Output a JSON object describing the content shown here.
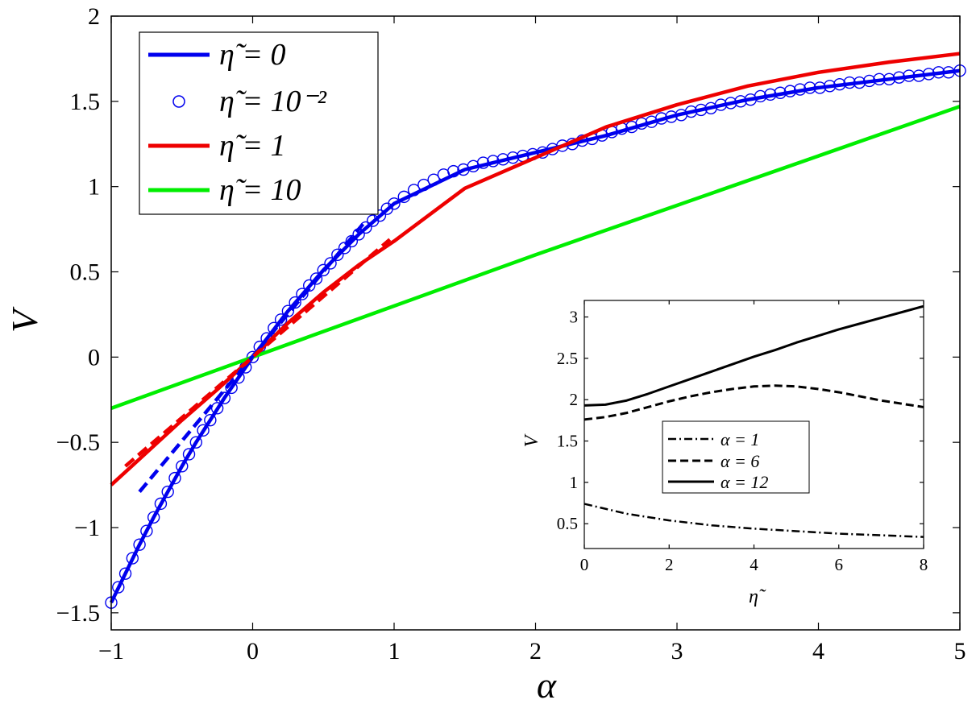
{
  "chart_data": [
    {
      "type": "line",
      "xlabel": "α",
      "ylabel": "V",
      "xlim": [
        -1,
        5
      ],
      "ylim": [
        -1.6,
        2
      ],
      "xticks": [
        {
          "value": -1,
          "label": "−1"
        },
        {
          "value": 0,
          "label": "0"
        },
        {
          "value": 1,
          "label": "1"
        },
        {
          "value": 2,
          "label": "2"
        },
        {
          "value": 3,
          "label": "3"
        },
        {
          "value": 4,
          "label": "4"
        },
        {
          "value": 5,
          "label": "5"
        }
      ],
      "yticks": [
        {
          "value": -1.5,
          "label": "−1.5"
        },
        {
          "value": -1,
          "label": "−1"
        },
        {
          "value": -0.5,
          "label": "−0.5"
        },
        {
          "value": 0,
          "label": "0"
        },
        {
          "value": 0.5,
          "label": "0.5"
        },
        {
          "value": 1,
          "label": "1"
        },
        {
          "value": 1.5,
          "label": "1.5"
        },
        {
          "value": 2,
          "label": "2"
        }
      ],
      "grid": false,
      "legend_position": "top-left",
      "series": [
        {
          "name": "η̃ = 0",
          "color": "#0000ee",
          "style": "solid",
          "x": [
            -1,
            -0.9,
            -0.8,
            -0.7,
            -0.6,
            -0.5,
            -0.4,
            -0.3,
            -0.2,
            -0.1,
            0,
            0.25,
            0.5,
            0.75,
            1,
            1.5,
            2,
            2.5,
            3,
            3.5,
            4,
            4.5,
            5
          ],
          "y": [
            -1.44,
            -1.27,
            -1.1,
            -0.94,
            -0.79,
            -0.64,
            -0.5,
            -0.37,
            -0.24,
            -0.12,
            0,
            0.27,
            0.51,
            0.72,
            0.9,
            1.1,
            1.2,
            1.3,
            1.42,
            1.51,
            1.58,
            1.63,
            1.68
          ]
        },
        {
          "name": "η̃ = 10⁻²",
          "color": "#0000ee",
          "style": "markers",
          "x": [
            -1,
            -0.95,
            -0.9,
            -0.85,
            -0.8,
            -0.75,
            -0.7,
            -0.65,
            -0.6,
            -0.55,
            -0.5,
            -0.45,
            -0.4,
            -0.35,
            -0.3,
            -0.25,
            -0.2,
            -0.15,
            -0.1,
            -0.05,
            0,
            0.05,
            0.1,
            0.15,
            0.2,
            0.25,
            0.3,
            0.35,
            0.4,
            0.45,
            0.5,
            0.55,
            0.6,
            0.65,
            0.7,
            0.75,
            0.8,
            0.85,
            0.9,
            0.95,
            1,
            1.07,
            1.14,
            1.21,
            1.28,
            1.35,
            1.42,
            1.49,
            1.56,
            1.63,
            1.7,
            1.77,
            1.84,
            1.91,
            1.98,
            2.05,
            2.12,
            2.19,
            2.26,
            2.33,
            2.4,
            2.47,
            2.54,
            2.61,
            2.68,
            2.75,
            2.82,
            2.89,
            2.96,
            3.03,
            3.1,
            3.17,
            3.24,
            3.31,
            3.38,
            3.45,
            3.52,
            3.59,
            3.66,
            3.73,
            3.8,
            3.87,
            3.94,
            4.01,
            4.08,
            4.15,
            4.22,
            4.29,
            4.36,
            4.43,
            4.5,
            4.57,
            4.64,
            4.71,
            4.78,
            4.85,
            4.92,
            5
          ],
          "y": [
            -1.44,
            -1.35,
            -1.27,
            -1.18,
            -1.1,
            -1.02,
            -0.94,
            -0.86,
            -0.79,
            -0.71,
            -0.64,
            -0.57,
            -0.5,
            -0.43,
            -0.37,
            -0.3,
            -0.24,
            -0.18,
            -0.12,
            -0.06,
            0,
            0.06,
            0.11,
            0.17,
            0.22,
            0.27,
            0.32,
            0.37,
            0.42,
            0.46,
            0.51,
            0.55,
            0.6,
            0.64,
            0.68,
            0.72,
            0.76,
            0.8,
            0.83,
            0.87,
            0.9,
            0.94,
            0.98,
            1.01,
            1.04,
            1.07,
            1.09,
            1.1,
            1.12,
            1.14,
            1.15,
            1.16,
            1.17,
            1.18,
            1.19,
            1.2,
            1.22,
            1.24,
            1.25,
            1.27,
            1.28,
            1.3,
            1.32,
            1.34,
            1.35,
            1.37,
            1.38,
            1.4,
            1.41,
            1.42,
            1.44,
            1.45,
            1.46,
            1.48,
            1.49,
            1.5,
            1.51,
            1.53,
            1.54,
            1.55,
            1.56,
            1.57,
            1.58,
            1.58,
            1.59,
            1.6,
            1.61,
            1.61,
            1.62,
            1.63,
            1.63,
            1.64,
            1.65,
            1.65,
            1.66,
            1.67,
            1.67,
            1.68
          ]
        },
        {
          "name": "η̃ = 1",
          "color": "#ee0000",
          "style": "solid",
          "x": [
            -1,
            -0.75,
            -0.5,
            -0.25,
            0,
            0.25,
            0.5,
            0.75,
            1,
            1.5,
            2,
            2.5,
            3,
            3.5,
            4,
            4.5,
            5
          ],
          "y": [
            -0.75,
            -0.56,
            -0.37,
            -0.19,
            0,
            0.2,
            0.38,
            0.54,
            0.68,
            0.99,
            1.17,
            1.35,
            1.48,
            1.59,
            1.67,
            1.73,
            1.78
          ]
        },
        {
          "name": "η̃ = 10",
          "color": "#00ee00",
          "style": "solid",
          "x": [
            -1,
            0,
            1,
            2,
            3,
            4,
            5
          ],
          "y": [
            -0.3,
            0,
            0.3,
            0.6,
            0.89,
            1.18,
            1.47
          ]
        },
        {
          "color": "#0000ee",
          "style": "dashed",
          "x": [
            -0.8,
            0.78
          ],
          "y": [
            -0.79,
            0.78
          ]
        },
        {
          "color": "#ee0000",
          "style": "dashed",
          "x": [
            -0.9,
            0.97
          ],
          "y": [
            -0.64,
            0.69
          ]
        }
      ]
    },
    {
      "type": "line",
      "xlabel": "η̃",
      "ylabel": "V",
      "xlim": [
        0,
        8
      ],
      "ylim": [
        0.2,
        3.2
      ],
      "xticks": [
        {
          "value": 0,
          "label": "0"
        },
        {
          "value": 2,
          "label": "2"
        },
        {
          "value": 4,
          "label": "4"
        },
        {
          "value": 6,
          "label": "6"
        },
        {
          "value": 8,
          "label": "8"
        }
      ],
      "yticks": [
        {
          "value": 0.5,
          "label": "0.5"
        },
        {
          "value": 1,
          "label": "1"
        },
        {
          "value": 1.5,
          "label": "1.5"
        },
        {
          "value": 2,
          "label": "2"
        },
        {
          "value": 2.5,
          "label": "2.5"
        },
        {
          "value": 3,
          "label": "3"
        }
      ],
      "grid": false,
      "legend_position": "center",
      "series": [
        {
          "name": "α = 1",
          "color": "#000000",
          "style": "dashdot",
          "x": [
            0,
            1,
            2,
            3,
            4,
            5,
            6,
            7,
            8
          ],
          "y": [
            0.74,
            0.62,
            0.54,
            0.48,
            0.44,
            0.41,
            0.38,
            0.36,
            0.34
          ]
        },
        {
          "name": "α = 6",
          "color": "#000000",
          "style": "dashed",
          "x": [
            0,
            0.5,
            1,
            1.5,
            2,
            2.5,
            3,
            3.5,
            4,
            4.5,
            5,
            5.5,
            6,
            6.5,
            7,
            7.5,
            8
          ],
          "y": [
            1.76,
            1.79,
            1.84,
            1.91,
            1.98,
            2.04,
            2.09,
            2.13,
            2.16,
            2.17,
            2.16,
            2.13,
            2.09,
            2.04,
            1.99,
            1.95,
            1.91
          ]
        },
        {
          "name": "α = 12",
          "color": "#000000",
          "style": "solid",
          "x": [
            0,
            0.5,
            1,
            1.5,
            2,
            2.5,
            3,
            3.5,
            4,
            4.5,
            5,
            5.5,
            6,
            6.5,
            7,
            7.5,
            8
          ],
          "y": [
            1.93,
            1.94,
            1.99,
            2.07,
            2.16,
            2.25,
            2.34,
            2.43,
            2.52,
            2.6,
            2.69,
            2.77,
            2.85,
            2.92,
            2.99,
            3.06,
            3.13
          ]
        }
      ]
    }
  ]
}
